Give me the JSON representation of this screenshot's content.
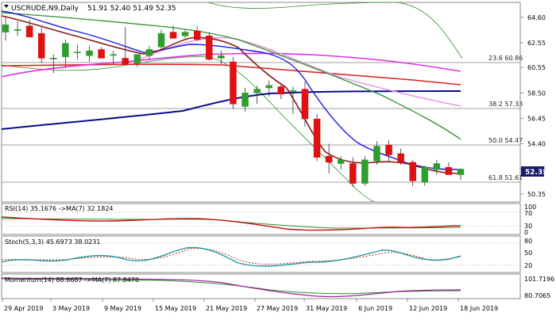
{
  "header": {
    "symbol": "USCRUDE,N9,Daily",
    "ohlc": "51.91 52.40 51.49 52.35"
  },
  "price_axis": {
    "ticks": [
      "64.60",
      "62.55",
      "60.55",
      "58.50",
      "56.45",
      "54.40",
      "52.35",
      "50.35"
    ],
    "current_price": "52.35"
  },
  "fib_levels": [
    {
      "label": "23.6 60.86",
      "value": 60.86
    },
    {
      "label": "38.2 57.33",
      "value": 57.33
    },
    {
      "label": "50.0 54.47",
      "value": 54.47
    },
    {
      "label": "61.8 51.61",
      "value": 51.61
    }
  ],
  "indicators": [
    {
      "title": "RSI(14) 35.1676 ->MA(7) 32.1824",
      "axis": [
        "100",
        "70",
        "30",
        "0"
      ]
    },
    {
      "title": "Stoch(5,3,3) 45.6973 38.0231",
      "axis": [
        "80",
        "50",
        "20"
      ]
    },
    {
      "title": "Momentum(14) 88.6687 ->MA(7) 87.8470",
      "axis": [
        "101.7196",
        "80.7065"
      ]
    }
  ],
  "date_axis": [
    "29 Apr 2019",
    "3 May 2019",
    "9 May 2019",
    "15 May 2019",
    "21 May 2019",
    "27 May 2019",
    "31 May 2019",
    "6 Jun 2019",
    "12 Jun 2019",
    "18 Jun 2019"
  ],
  "colors": {
    "bull": "#2e9e2e",
    "bear": "#dd1111",
    "ma_fast": "#8b1a1a",
    "ma_blue": "#1a1ae0",
    "ma_green": "#2f8f2f",
    "ma_magenta": "#e030e0",
    "ma_red": "#dd2222",
    "ma_navy": "#0a0a8c",
    "ma_pink": "#e89ae8",
    "bb": "#2f8f2f",
    "rsi": "#cc1111",
    "stoch_k": "#229999",
    "mom": "#a020a0",
    "price_tag": "#1a1a6b"
  },
  "chart_data": {
    "type": "candlestick",
    "title": "USCRUDE,N9,Daily",
    "y_range": [
      49.7,
      65.8
    ],
    "x_labels": [
      "29 Apr 2019",
      "3 May 2019",
      "9 May 2019",
      "15 May 2019",
      "21 May 2019",
      "27 May 2019",
      "31 May 2019",
      "6 Jun 2019",
      "12 Jun 2019",
      "18 Jun 2019"
    ],
    "candles": [
      {
        "o": 63.4,
        "h": 64.7,
        "l": 62.7,
        "c": 64.0
      },
      {
        "o": 63.6,
        "h": 64.3,
        "l": 63.1,
        "c": 63.6
      },
      {
        "o": 63.9,
        "h": 64.4,
        "l": 63.0,
        "c": 63.0
      },
      {
        "o": 63.3,
        "h": 63.8,
        "l": 60.9,
        "c": 61.3
      },
      {
        "o": 61.3,
        "h": 61.6,
        "l": 60.1,
        "c": 61.3
      },
      {
        "o": 61.4,
        "h": 62.8,
        "l": 60.5,
        "c": 62.5
      },
      {
        "o": 61.8,
        "h": 62.4,
        "l": 61.2,
        "c": 61.8
      },
      {
        "o": 61.5,
        "h": 62.3,
        "l": 61.0,
        "c": 61.9
      },
      {
        "o": 62.0,
        "h": 62.2,
        "l": 61.3,
        "c": 61.3
      },
      {
        "o": 61.6,
        "h": 61.9,
        "l": 60.8,
        "c": 61.6
      },
      {
        "o": 61.3,
        "h": 63.8,
        "l": 60.8,
        "c": 60.8
      },
      {
        "o": 60.9,
        "h": 61.6,
        "l": 60.6,
        "c": 61.6
      },
      {
        "o": 61.5,
        "h": 62.3,
        "l": 61.2,
        "c": 62.0
      },
      {
        "o": 62.2,
        "h": 63.6,
        "l": 62.0,
        "c": 63.3
      },
      {
        "o": 63.4,
        "h": 63.9,
        "l": 62.9,
        "c": 62.9
      },
      {
        "o": 63.1,
        "h": 63.6,
        "l": 62.9,
        "c": 63.4
      },
      {
        "o": 63.5,
        "h": 63.9,
        "l": 62.7,
        "c": 62.8
      },
      {
        "o": 63.1,
        "h": 63.4,
        "l": 61.1,
        "c": 61.2
      },
      {
        "o": 61.3,
        "h": 61.9,
        "l": 60.8,
        "c": 61.5
      },
      {
        "o": 61.0,
        "h": 61.4,
        "l": 57.2,
        "c": 57.6
      },
      {
        "o": 57.4,
        "h": 58.9,
        "l": 57.0,
        "c": 58.5
      },
      {
        "o": 58.5,
        "h": 59.1,
        "l": 57.6,
        "c": 58.8
      },
      {
        "o": 58.9,
        "h": 59.5,
        "l": 58.2,
        "c": 59.1
      },
      {
        "o": 59.0,
        "h": 59.2,
        "l": 58.0,
        "c": 58.4
      },
      {
        "o": 58.7,
        "h": 59.0,
        "l": 56.8,
        "c": 58.7
      },
      {
        "o": 58.8,
        "h": 59.4,
        "l": 55.8,
        "c": 56.4
      },
      {
        "o": 56.4,
        "h": 56.8,
        "l": 53.0,
        "c": 53.3
      },
      {
        "o": 53.4,
        "h": 54.4,
        "l": 52.0,
        "c": 52.9
      },
      {
        "o": 52.8,
        "h": 53.4,
        "l": 52.3,
        "c": 53.1
      },
      {
        "o": 52.8,
        "h": 53.3,
        "l": 50.9,
        "c": 51.2
      },
      {
        "o": 51.2,
        "h": 53.4,
        "l": 51.0,
        "c": 53.1
      },
      {
        "o": 53.0,
        "h": 54.6,
        "l": 52.7,
        "c": 54.2
      },
      {
        "o": 54.3,
        "h": 54.7,
        "l": 52.9,
        "c": 53.5
      },
      {
        "o": 53.6,
        "h": 54.0,
        "l": 52.7,
        "c": 52.9
      },
      {
        "o": 52.9,
        "h": 53.1,
        "l": 51.0,
        "c": 51.4
      },
      {
        "o": 51.3,
        "h": 52.6,
        "l": 51.0,
        "c": 52.5
      },
      {
        "o": 52.3,
        "h": 53.1,
        "l": 51.9,
        "c": 52.8
      },
      {
        "o": 52.5,
        "h": 52.9,
        "l": 51.9,
        "c": 51.9
      },
      {
        "o": 51.9,
        "h": 52.4,
        "l": 51.5,
        "c": 52.35
      }
    ],
    "moving_averages": [
      {
        "color_key": "ma_navy",
        "values": [
          55.2,
          58.2,
          58.3,
          58.4
        ]
      },
      {
        "color_key": "ma_red",
        "values": [
          60.6,
          60.8,
          60.4,
          59.1
        ]
      },
      {
        "color_key": "ma_magenta",
        "values": [
          59.9,
          61.3,
          61.7,
          60.3
        ]
      },
      {
        "color_key": "ma_pink",
        "values": [
          62.1,
          62.9,
          60.8,
          57.4
        ]
      },
      {
        "color_key": "ma_green",
        "values": [
          64.2,
          63.0,
          61.3,
          54.6
        ]
      }
    ]
  }
}
